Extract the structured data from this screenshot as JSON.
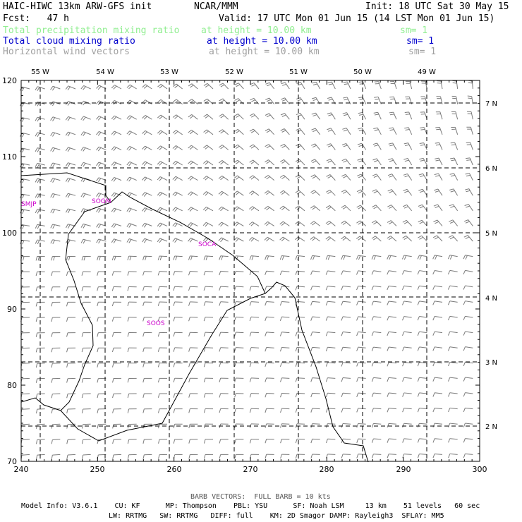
{
  "header": {
    "title": "HAIC-HIWC 13km ARW-GFS init",
    "org": "NCAR/MMM",
    "init": "Init: 18 UTC Sat 30 May 15",
    "fcst": "Fcst:   47 h",
    "valid": "Valid: 17 UTC Mon 01 Jun 15 (14 LST Mon 01 Jun 15)",
    "fields": [
      {
        "name": "Total precipitation mixing ratio",
        "level": "at height = 10.00 km",
        "sm": "sm= 1",
        "color": "#90ee90"
      },
      {
        "name": "Total cloud mixing ratio",
        "level": "at height = 10.00 km",
        "sm": "sm= 1",
        "color": "#0000cd"
      },
      {
        "name": "Horizontal wind vectors",
        "level": "at height = 10.00 km",
        "sm": "sm= 1",
        "color": "#a0a0a0"
      }
    ]
  },
  "map": {
    "x_ticks": [
      "240",
      "250",
      "260",
      "270",
      "280",
      "290",
      "300"
    ],
    "y_ticks": [
      "70",
      "80",
      "90",
      "100",
      "110",
      "120"
    ],
    "lon_labels": [
      "55 W",
      "54 W",
      "53 W",
      "52 W",
      "51 W",
      "50 W",
      "49 W"
    ],
    "lat_labels": [
      "7 N",
      "6 N",
      "5 N",
      "4 N",
      "3 N",
      "2 N"
    ],
    "stations": [
      {
        "label": "SMJP",
        "color": "#cc00cc"
      },
      {
        "label": "SOGM",
        "color": "#cc00cc"
      },
      {
        "label": "SOCA",
        "color": "#cc00cc"
      },
      {
        "label": "SOOS",
        "color": "#cc00cc"
      }
    ],
    "grid_line_color": "#000000",
    "barb_color": "#7a7a7a"
  },
  "footer": {
    "barb_note": "BARB VECTORS:  FULL BARB = 10 kts",
    "line1": "Model Info: V3.6.1    CU: KF      MP: Thompson    PBL: YSU      SF: Noah LSM     13 km    51 levels   60 sec",
    "line2": "LW: RRTMG   SW: RRTMG   DIFF: full    KM: 2D Smagor DAMP: Rayleigh3  SFLAY: MM5"
  }
}
